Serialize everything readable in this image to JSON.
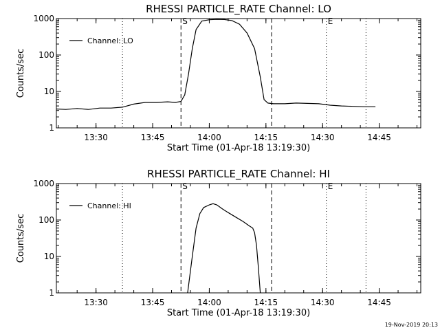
{
  "footer": {
    "timestamp": "19-Nov-2019 20:13"
  },
  "chart_data": [
    {
      "type": "line",
      "title": "RHESSI PARTICLE_RATE Channel: LO",
      "xlabel": "Start Time (01-Apr-18 13:19:30)",
      "ylabel": "Counts/sec",
      "yscale": "log",
      "ylim": [
        1,
        1000
      ],
      "xlim": [
        "13:19:30",
        "14:56:00"
      ],
      "x_ticks": [
        "13:30",
        "13:45",
        "14:00",
        "14:15",
        "14:30",
        "14:45"
      ],
      "y_ticks": [
        "1",
        "10",
        "100",
        "1000"
      ],
      "legend": "top-left",
      "grid": false,
      "markers": [
        {
          "time": "13:37:00",
          "style": "dotted",
          "label": ""
        },
        {
          "time": "13:52:30",
          "style": "dashed",
          "label": "S"
        },
        {
          "time": "14:16:30",
          "style": "dashed",
          "label": ""
        },
        {
          "time": "14:31:00",
          "style": "dotted",
          "label": "E"
        },
        {
          "time": "14:41:30",
          "style": "dotted",
          "label": ""
        }
      ],
      "series": [
        {
          "name": "Channel: LO",
          "x": [
            "13:19:30",
            "13:22:00",
            "13:25:00",
            "13:28:00",
            "13:31:00",
            "13:34:00",
            "13:37:00",
            "13:40:00",
            "13:43:00",
            "13:46:00",
            "13:49:00",
            "13:51:00",
            "13:52:30",
            "13:53:30",
            "13:54:30",
            "13:55:30",
            "13:56:30",
            "13:58:00",
            "14:00:00",
            "14:02:00",
            "14:04:00",
            "14:06:00",
            "14:08:00",
            "14:10:00",
            "14:12:00",
            "14:13:30",
            "14:14:30",
            "14:15:30",
            "14:17:00",
            "14:20:00",
            "14:23:00",
            "14:26:00",
            "14:29:00",
            "14:32:00",
            "14:35:00",
            "14:38:00",
            "14:41:00",
            "14:44:00"
          ],
          "y": [
            3.3,
            3.2,
            3.4,
            3.2,
            3.5,
            3.5,
            3.7,
            4.5,
            5.0,
            5.0,
            5.2,
            5.0,
            5.3,
            8,
            30,
            150,
            500,
            850,
            930,
            950,
            940,
            880,
            700,
            400,
            150,
            25,
            6,
            4.8,
            4.6,
            4.6,
            4.8,
            4.7,
            4.6,
            4.2,
            4.0,
            3.9,
            3.8,
            3.8
          ]
        }
      ]
    },
    {
      "type": "line",
      "title": "RHESSI PARTICLE_RATE Channel: HI",
      "xlabel": "Start Time (01-Apr-18 13:19:30)",
      "ylabel": "Counts/sec",
      "yscale": "log",
      "ylim": [
        1,
        1000
      ],
      "xlim": [
        "13:19:30",
        "14:56:00"
      ],
      "x_ticks": [
        "13:30",
        "13:45",
        "14:00",
        "14:15",
        "14:30",
        "14:45"
      ],
      "y_ticks": [
        "1",
        "10",
        "100",
        "1000"
      ],
      "legend": "top-left",
      "grid": false,
      "markers": [
        {
          "time": "13:37:00",
          "style": "dotted",
          "label": ""
        },
        {
          "time": "13:52:30",
          "style": "dashed",
          "label": "S"
        },
        {
          "time": "14:16:30",
          "style": "dashed",
          "label": ""
        },
        {
          "time": "14:31:00",
          "style": "dotted",
          "label": "E"
        },
        {
          "time": "14:41:30",
          "style": "dotted",
          "label": ""
        }
      ],
      "series": [
        {
          "name": "Channel: HI",
          "x": [
            "13:54:15",
            "13:55:30",
            "13:56:30",
            "13:57:30",
            "13:58:30",
            "14:00:00",
            "14:01:00",
            "14:02:00",
            "14:03:30",
            "14:05:00",
            "14:07:00",
            "14:09:00",
            "14:10:30",
            "14:11:30",
            "14:12:00",
            "14:12:30",
            "14:13:00",
            "14:13:30"
          ],
          "y": [
            1,
            10,
            60,
            150,
            220,
            260,
            280,
            260,
            200,
            160,
            120,
            90,
            70,
            60,
            45,
            20,
            5,
            1
          ]
        }
      ]
    }
  ]
}
